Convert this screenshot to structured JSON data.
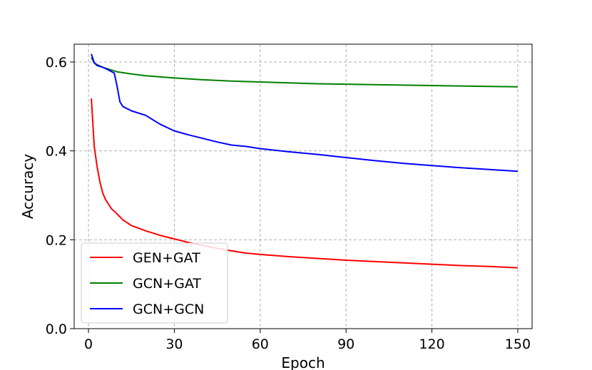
{
  "chart_data": {
    "type": "line",
    "title": "",
    "xlabel": "Epoch",
    "ylabel": "Accuracy",
    "xlim": [
      -5,
      155
    ],
    "ylim": [
      0.0,
      0.64
    ],
    "xticks": [
      0,
      30,
      60,
      90,
      120,
      150
    ],
    "yticks": [
      0.0,
      0.2,
      0.4,
      0.6
    ],
    "xtick_labels": [
      "0",
      "30",
      "60",
      "90",
      "120",
      "150"
    ],
    "ytick_labels": [
      "0.0",
      "0.2",
      "0.4",
      "0.6"
    ],
    "grid": true,
    "legend_position": "lower-left",
    "series": [
      {
        "name": "GEN+GAT",
        "color": "#ff0000",
        "x": [
          1,
          2,
          3,
          4,
          5,
          6,
          8,
          10,
          12,
          15,
          20,
          25,
          30,
          35,
          40,
          45,
          50,
          55,
          60,
          70,
          80,
          90,
          100,
          110,
          120,
          130,
          140,
          150
        ],
        "y": [
          0.518,
          0.41,
          0.365,
          0.33,
          0.305,
          0.29,
          0.27,
          0.258,
          0.245,
          0.232,
          0.22,
          0.21,
          0.202,
          0.194,
          0.187,
          0.181,
          0.175,
          0.17,
          0.167,
          0.162,
          0.158,
          0.154,
          0.151,
          0.148,
          0.145,
          0.142,
          0.14,
          0.137
        ]
      },
      {
        "name": "GCN+GAT",
        "color": "#008000",
        "x": [
          1,
          2,
          3,
          5,
          8,
          10,
          15,
          20,
          30,
          40,
          50,
          60,
          70,
          80,
          90,
          100,
          110,
          120,
          130,
          140,
          150
        ],
        "y": [
          0.61,
          0.598,
          0.594,
          0.588,
          0.582,
          0.578,
          0.573,
          0.569,
          0.564,
          0.56,
          0.557,
          0.555,
          0.553,
          0.551,
          0.55,
          0.549,
          0.548,
          0.547,
          0.546,
          0.545,
          0.544
        ]
      },
      {
        "name": "GCN+GCN",
        "color": "#0000ff",
        "x": [
          1,
          2,
          3,
          5,
          7,
          9,
          10,
          11,
          12,
          15,
          20,
          25,
          30,
          35,
          40,
          45,
          50,
          55,
          60,
          70,
          80,
          90,
          100,
          110,
          120,
          130,
          140,
          150
        ],
        "y": [
          0.618,
          0.598,
          0.592,
          0.588,
          0.582,
          0.575,
          0.545,
          0.51,
          0.5,
          0.49,
          0.48,
          0.46,
          0.445,
          0.436,
          0.428,
          0.42,
          0.413,
          0.41,
          0.405,
          0.398,
          0.392,
          0.385,
          0.378,
          0.372,
          0.367,
          0.362,
          0.358,
          0.354
        ]
      }
    ]
  }
}
